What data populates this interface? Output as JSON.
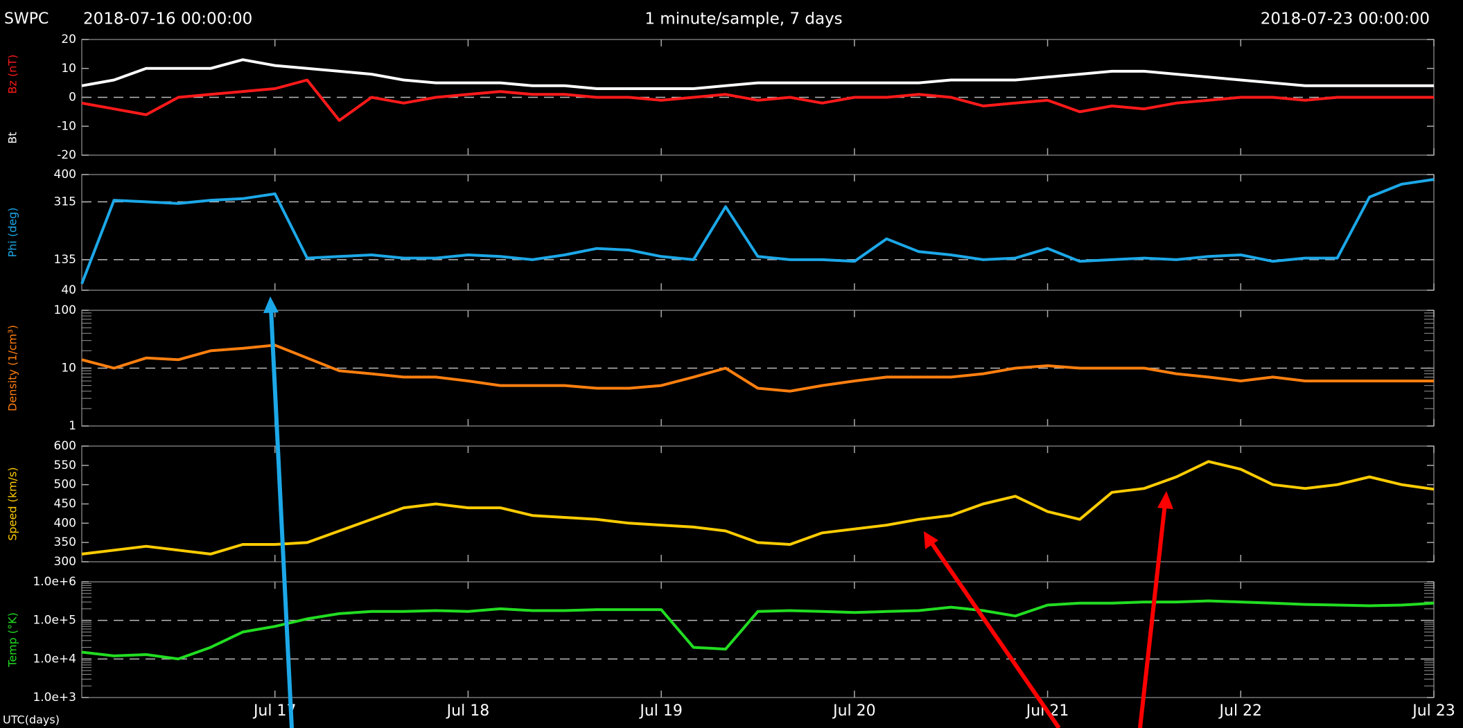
{
  "header": {
    "source": "SWPC",
    "start": "2018-07-16 00:00:00",
    "center": "1 minute/sample, 7 days",
    "end": "2018-07-23 00:00:00"
  },
  "chart_data": [
    {
      "type": "line",
      "xlim": [
        "2018-07-16 00:00",
        "2018-07-23 00:00"
      ],
      "x": [
        "2018-07-16 00:00",
        "2018-07-16 04:00",
        "2018-07-16 08:00",
        "2018-07-16 12:00",
        "2018-07-16 16:00",
        "2018-07-16 20:00",
        "2018-07-17 00:00",
        "2018-07-17 04:00",
        "2018-07-17 08:00",
        "2018-07-17 12:00",
        "2018-07-17 16:00",
        "2018-07-17 20:00",
        "2018-07-18 00:00",
        "2018-07-18 04:00",
        "2018-07-18 08:00",
        "2018-07-18 12:00",
        "2018-07-18 16:00",
        "2018-07-18 20:00",
        "2018-07-19 00:00",
        "2018-07-19 04:00",
        "2018-07-19 08:00",
        "2018-07-19 12:00",
        "2018-07-19 16:00",
        "2018-07-19 20:00",
        "2018-07-20 00:00",
        "2018-07-20 04:00",
        "2018-07-20 08:00",
        "2018-07-20 12:00",
        "2018-07-20 16:00",
        "2018-07-20 20:00",
        "2018-07-21 00:00",
        "2018-07-21 04:00",
        "2018-07-21 08:00",
        "2018-07-21 12:00",
        "2018-07-21 16:00",
        "2018-07-21 20:00",
        "2018-07-22 00:00",
        "2018-07-22 04:00",
        "2018-07-22 08:00",
        "2018-07-22 12:00",
        "2018-07-22 16:00",
        "2018-07-22 20:00",
        "2018-07-23 00:00"
      ],
      "ylim": [
        -20,
        20
      ],
      "yticks": [
        -20,
        -10,
        0,
        10,
        20
      ],
      "gridlines": [
        0
      ],
      "series": [
        {
          "name": "Bz (nT)",
          "color": "#ff1a1a",
          "values": [
            -2,
            -4,
            -6,
            0,
            1,
            2,
            3,
            6,
            -8,
            0,
            -2,
            0,
            1,
            2,
            1,
            1,
            0,
            0,
            -1,
            0,
            1,
            -1,
            0,
            -2,
            0,
            0,
            1,
            0,
            -3,
            -2,
            -1,
            -5,
            -3,
            -4,
            -2,
            -1,
            0,
            0,
            -1,
            0,
            0,
            0,
            0
          ]
        },
        {
          "name": "Bt",
          "color": "#ffffff",
          "values": [
            4,
            6,
            10,
            10,
            10,
            13,
            11,
            10,
            9,
            8,
            6,
            5,
            5,
            5,
            4,
            4,
            3,
            3,
            3,
            3,
            4,
            5,
            5,
            5,
            5,
            5,
            5,
            6,
            6,
            6,
            7,
            8,
            9,
            9,
            8,
            7,
            6,
            5,
            4,
            4,
            4,
            4,
            4
          ]
        }
      ]
    },
    {
      "type": "line",
      "xlim": [
        "2018-07-16 00:00",
        "2018-07-23 00:00"
      ],
      "x": [
        "2018-07-16 00:00",
        "2018-07-16 04:00",
        "2018-07-16 08:00",
        "2018-07-16 12:00",
        "2018-07-16 16:00",
        "2018-07-16 20:00",
        "2018-07-17 00:00",
        "2018-07-17 04:00",
        "2018-07-17 08:00",
        "2018-07-17 12:00",
        "2018-07-17 16:00",
        "2018-07-17 20:00",
        "2018-07-18 00:00",
        "2018-07-18 04:00",
        "2018-07-18 08:00",
        "2018-07-18 12:00",
        "2018-07-18 16:00",
        "2018-07-18 20:00",
        "2018-07-19 00:00",
        "2018-07-19 04:00",
        "2018-07-19 08:00",
        "2018-07-19 12:00",
        "2018-07-19 16:00",
        "2018-07-19 20:00",
        "2018-07-20 00:00",
        "2018-07-20 04:00",
        "2018-07-20 08:00",
        "2018-07-20 12:00",
        "2018-07-20 16:00",
        "2018-07-20 20:00",
        "2018-07-21 00:00",
        "2018-07-21 04:00",
        "2018-07-21 08:00",
        "2018-07-21 12:00",
        "2018-07-21 16:00",
        "2018-07-21 20:00",
        "2018-07-22 00:00",
        "2018-07-22 04:00",
        "2018-07-22 08:00",
        "2018-07-22 12:00",
        "2018-07-22 16:00",
        "2018-07-22 20:00",
        "2018-07-23 00:00"
      ],
      "ylim": [
        40,
        400
      ],
      "yticks": [
        40,
        135,
        315,
        400
      ],
      "gridlines": [
        135,
        315
      ],
      "series": [
        {
          "name": "Phi (deg)",
          "color": "#1ca8e8",
          "values": [
            60,
            320,
            315,
            310,
            320,
            325,
            340,
            140,
            145,
            150,
            140,
            140,
            150,
            145,
            135,
            150,
            170,
            165,
            145,
            135,
            300,
            145,
            135,
            135,
            130,
            200,
            160,
            150,
            135,
            140,
            170,
            130,
            135,
            140,
            135,
            145,
            150,
            130,
            140,
            140,
            330,
            370,
            385
          ]
        }
      ]
    },
    {
      "type": "line",
      "yscale": "log",
      "xlim": [
        "2018-07-16 00:00",
        "2018-07-23 00:00"
      ],
      "x": [
        "2018-07-16 00:00",
        "2018-07-16 04:00",
        "2018-07-16 08:00",
        "2018-07-16 12:00",
        "2018-07-16 16:00",
        "2018-07-16 20:00",
        "2018-07-17 00:00",
        "2018-07-17 04:00",
        "2018-07-17 08:00",
        "2018-07-17 12:00",
        "2018-07-17 16:00",
        "2018-07-17 20:00",
        "2018-07-18 00:00",
        "2018-07-18 04:00",
        "2018-07-18 08:00",
        "2018-07-18 12:00",
        "2018-07-18 16:00",
        "2018-07-18 20:00",
        "2018-07-19 00:00",
        "2018-07-19 04:00",
        "2018-07-19 08:00",
        "2018-07-19 12:00",
        "2018-07-19 16:00",
        "2018-07-19 20:00",
        "2018-07-20 00:00",
        "2018-07-20 04:00",
        "2018-07-20 08:00",
        "2018-07-20 12:00",
        "2018-07-20 16:00",
        "2018-07-20 20:00",
        "2018-07-21 00:00",
        "2018-07-21 04:00",
        "2018-07-21 08:00",
        "2018-07-21 12:00",
        "2018-07-21 16:00",
        "2018-07-21 20:00",
        "2018-07-22 00:00",
        "2018-07-22 04:00",
        "2018-07-22 08:00",
        "2018-07-22 12:00",
        "2018-07-22 16:00",
        "2018-07-22 20:00",
        "2018-07-23 00:00"
      ],
      "ylim": [
        1,
        100
      ],
      "yticks": [
        1,
        10,
        100
      ],
      "gridlines": [
        10
      ],
      "series": [
        {
          "name": "Density (1/cm³)",
          "color": "#ff7f0f",
          "values": [
            14,
            10,
            15,
            14,
            20,
            22,
            25,
            15,
            9,
            8,
            7,
            7,
            6,
            5,
            5,
            5,
            4.5,
            4.5,
            5,
            7,
            10,
            4.5,
            4,
            5,
            6,
            7,
            7,
            7,
            8,
            10,
            11,
            10,
            10,
            10,
            8,
            7,
            6,
            7,
            6,
            6,
            6,
            6,
            6
          ]
        }
      ]
    },
    {
      "type": "line",
      "xlim": [
        "2018-07-16 00:00",
        "2018-07-23 00:00"
      ],
      "x": [
        "2018-07-16 00:00",
        "2018-07-16 04:00",
        "2018-07-16 08:00",
        "2018-07-16 12:00",
        "2018-07-16 16:00",
        "2018-07-16 20:00",
        "2018-07-17 00:00",
        "2018-07-17 04:00",
        "2018-07-17 08:00",
        "2018-07-17 12:00",
        "2018-07-17 16:00",
        "2018-07-17 20:00",
        "2018-07-18 00:00",
        "2018-07-18 04:00",
        "2018-07-18 08:00",
        "2018-07-18 12:00",
        "2018-07-18 16:00",
        "2018-07-18 20:00",
        "2018-07-19 00:00",
        "2018-07-19 04:00",
        "2018-07-19 08:00",
        "2018-07-19 12:00",
        "2018-07-19 16:00",
        "2018-07-19 20:00",
        "2018-07-20 00:00",
        "2018-07-20 04:00",
        "2018-07-20 08:00",
        "2018-07-20 12:00",
        "2018-07-20 16:00",
        "2018-07-20 20:00",
        "2018-07-21 00:00",
        "2018-07-21 04:00",
        "2018-07-21 08:00",
        "2018-07-21 12:00",
        "2018-07-21 16:00",
        "2018-07-21 20:00",
        "2018-07-22 00:00",
        "2018-07-22 04:00",
        "2018-07-22 08:00",
        "2018-07-22 12:00",
        "2018-07-22 16:00",
        "2018-07-22 20:00",
        "2018-07-23 00:00"
      ],
      "ylim": [
        300,
        600
      ],
      "yticks": [
        300,
        350,
        400,
        450,
        500,
        550,
        600
      ],
      "gridlines": [],
      "series": [
        {
          "name": "Speed (km/s)",
          "color": "#ffcc00",
          "values": [
            320,
            330,
            340,
            330,
            320,
            345,
            345,
            350,
            380,
            410,
            440,
            450,
            440,
            440,
            420,
            415,
            410,
            400,
            395,
            390,
            380,
            350,
            345,
            375,
            385,
            395,
            410,
            420,
            450,
            470,
            430,
            410,
            480,
            490,
            520,
            560,
            540,
            500,
            490,
            500,
            520,
            500,
            488
          ]
        }
      ]
    },
    {
      "type": "line",
      "yscale": "log",
      "xlabel": "UTC(days)",
      "xlim": [
        "2018-07-16 00:00",
        "2018-07-23 00:00"
      ],
      "xticks": [
        {
          "value": "2018-07-17 00:00",
          "label": "Jul 17"
        },
        {
          "value": "2018-07-18 00:00",
          "label": "Jul 18"
        },
        {
          "value": "2018-07-19 00:00",
          "label": "Jul 19"
        },
        {
          "value": "2018-07-20 00:00",
          "label": "Jul 20"
        },
        {
          "value": "2018-07-21 00:00",
          "label": "Jul 21"
        },
        {
          "value": "2018-07-22 00:00",
          "label": "Jul 22"
        },
        {
          "value": "2018-07-23 00:00",
          "label": "Jul 23"
        }
      ],
      "x": [
        "2018-07-16 00:00",
        "2018-07-16 04:00",
        "2018-07-16 08:00",
        "2018-07-16 12:00",
        "2018-07-16 16:00",
        "2018-07-16 20:00",
        "2018-07-17 00:00",
        "2018-07-17 04:00",
        "2018-07-17 08:00",
        "2018-07-17 12:00",
        "2018-07-17 16:00",
        "2018-07-17 20:00",
        "2018-07-18 00:00",
        "2018-07-18 04:00",
        "2018-07-18 08:00",
        "2018-07-18 12:00",
        "2018-07-18 16:00",
        "2018-07-18 20:00",
        "2018-07-19 00:00",
        "2018-07-19 04:00",
        "2018-07-19 08:00",
        "2018-07-19 12:00",
        "2018-07-19 16:00",
        "2018-07-19 20:00",
        "2018-07-20 00:00",
        "2018-07-20 04:00",
        "2018-07-20 08:00",
        "2018-07-20 12:00",
        "2018-07-20 16:00",
        "2018-07-20 20:00",
        "2018-07-21 00:00",
        "2018-07-21 04:00",
        "2018-07-21 08:00",
        "2018-07-21 12:00",
        "2018-07-21 16:00",
        "2018-07-21 20:00",
        "2018-07-22 00:00",
        "2018-07-22 04:00",
        "2018-07-22 08:00",
        "2018-07-22 12:00",
        "2018-07-22 16:00",
        "2018-07-22 20:00",
        "2018-07-23 00:00"
      ],
      "ylim": [
        1000,
        1000000
      ],
      "yticks": [
        {
          "value": 1000,
          "label": "1.0e+3"
        },
        {
          "value": 10000,
          "label": "1.0e+4"
        },
        {
          "value": 100000,
          "label": "1.0e+5"
        },
        {
          "value": 1000000,
          "label": "1.0e+6"
        }
      ],
      "gridlines": [
        10000,
        100000
      ],
      "series": [
        {
          "name": "Temp (°K)",
          "color": "#22dd22",
          "values": [
            15000,
            12000,
            13000,
            10000,
            20000,
            50000,
            70000,
            110000,
            150000,
            170000,
            170000,
            180000,
            170000,
            200000,
            180000,
            180000,
            190000,
            190000,
            190000,
            20000,
            18000,
            170000,
            180000,
            170000,
            160000,
            170000,
            180000,
            220000,
            180000,
            130000,
            250000,
            280000,
            280000,
            300000,
            300000,
            320000,
            300000,
            280000,
            260000,
            250000,
            240000,
            250000,
            280000
          ]
        }
      ]
    }
  ]
}
